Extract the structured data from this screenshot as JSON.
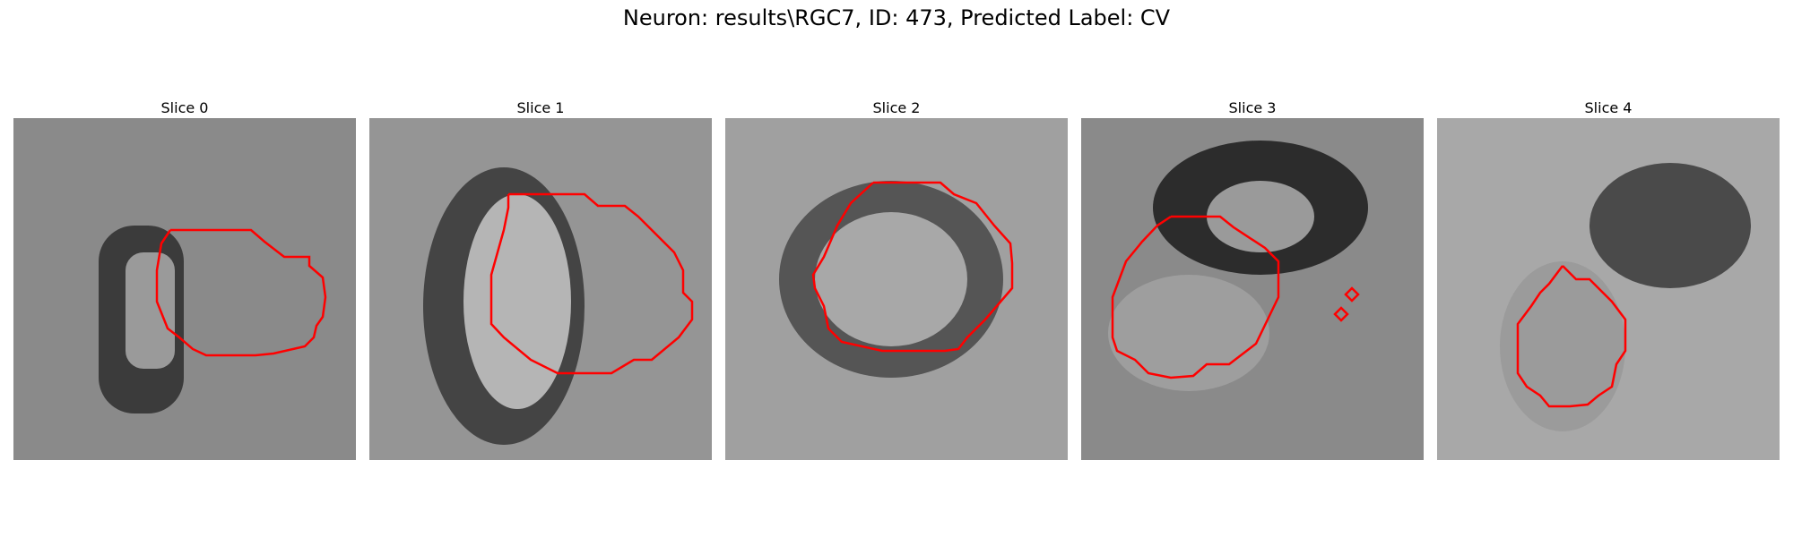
{
  "figure": {
    "title": "Neuron: results\\RGC7, ID: 473, Predicted Label: CV"
  },
  "panels": [
    {
      "title": "Slice 0"
    },
    {
      "title": "Slice 1"
    },
    {
      "title": "Slice 2"
    },
    {
      "title": "Slice 3"
    },
    {
      "title": "Slice 4"
    }
  ],
  "colors": {
    "contour": "#ff0000",
    "colormap": "gray"
  }
}
